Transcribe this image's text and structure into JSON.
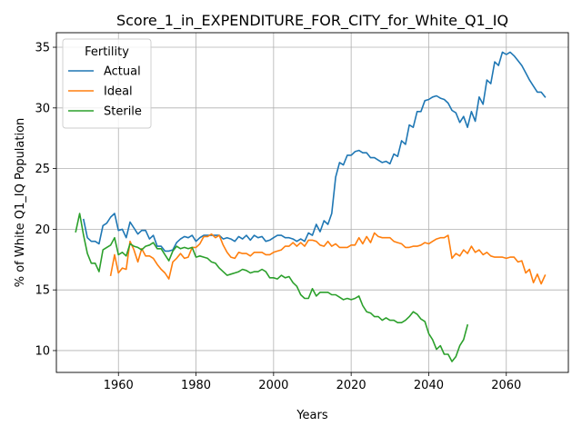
{
  "chart_data": {
    "type": "line",
    "title": "Score_1_in_EXPENDITURE_FOR_CITY_for_White_Q1_IQ",
    "xlabel": "Years",
    "ylabel": "% of White Q1_IQ Population",
    "xlim": [
      1944,
      2076
    ],
    "ylim": [
      8.2,
      36.2
    ],
    "xticks": [
      1960,
      1980,
      2000,
      2020,
      2040,
      2060
    ],
    "yticks": [
      10,
      15,
      20,
      25,
      30,
      35
    ],
    "grid": true,
    "legend": {
      "title": "Fertility",
      "position": "top-left"
    },
    "series": [
      {
        "name": "Actual",
        "color": "#1f77b4",
        "x": [
          1951,
          1952,
          1953,
          1954,
          1955,
          1956,
          1957,
          1958,
          1959,
          1960,
          1961,
          1962,
          1963,
          1964,
          1965,
          1966,
          1967,
          1968,
          1969,
          1970,
          1971,
          1972,
          1973,
          1974,
          1975,
          1976,
          1977,
          1978,
          1979,
          1980,
          1981,
          1982,
          1983,
          1984,
          1985,
          1986,
          1987,
          1988,
          1989,
          1990,
          1991,
          1992,
          1993,
          1994,
          1995,
          1996,
          1997,
          1998,
          1999,
          2000,
          2001,
          2002,
          2003,
          2004,
          2005,
          2006,
          2007,
          2008,
          2009,
          2010,
          2011,
          2012,
          2013,
          2014,
          2015,
          2016,
          2017,
          2018,
          2019,
          2020,
          2021,
          2022,
          2023,
          2024,
          2025,
          2026,
          2027,
          2028,
          2029,
          2030,
          2031,
          2032,
          2033,
          2034,
          2035,
          2036,
          2037,
          2038,
          2039,
          2040,
          2041,
          2042,
          2043,
          2044,
          2045,
          2046,
          2047,
          2048,
          2049,
          2050,
          2051,
          2052,
          2053,
          2054,
          2055,
          2056,
          2057,
          2058,
          2059,
          2060,
          2061,
          2062,
          2063,
          2064,
          2065,
          2066,
          2067,
          2068,
          2069,
          2070
        ],
        "values": [
          20.8,
          19.3,
          19.0,
          19.0,
          18.8,
          20.3,
          20.5,
          21.0,
          21.3,
          19.9,
          20.0,
          19.3,
          20.6,
          20.1,
          19.6,
          19.9,
          19.9,
          19.2,
          19.5,
          18.6,
          18.6,
          18.2,
          18.2,
          18.3,
          18.9,
          19.2,
          19.4,
          19.3,
          19.5,
          19.0,
          19.3,
          19.5,
          19.5,
          19.5,
          19.5,
          19.5,
          19.2,
          19.3,
          19.2,
          19.0,
          19.4,
          19.2,
          19.5,
          19.1,
          19.5,
          19.3,
          19.4,
          19.0,
          19.1,
          19.3,
          19.5,
          19.5,
          19.3,
          19.3,
          19.2,
          19.0,
          19.2,
          19.0,
          19.7,
          19.5,
          20.4,
          19.8,
          20.7,
          20.4,
          21.3,
          24.3,
          25.5,
          25.3,
          26.1,
          26.1,
          26.4,
          26.5,
          26.3,
          26.3,
          25.9,
          25.9,
          25.7,
          25.5,
          25.6,
          25.4,
          26.2,
          26.0,
          27.3,
          27.0,
          28.6,
          28.4,
          29.7,
          29.7,
          30.6,
          30.7,
          30.9,
          31.0,
          30.8,
          30.7,
          30.4,
          29.8,
          29.6,
          28.8,
          29.3,
          28.4,
          29.7,
          28.9,
          30.9,
          30.3,
          32.3,
          32.0,
          33.8,
          33.5,
          34.6,
          34.4,
          34.6,
          34.3,
          33.9,
          33.5,
          32.9,
          32.3,
          31.8,
          31.3,
          31.3,
          30.9
        ]
      },
      {
        "name": "Ideal",
        "color": "#ff7f0e",
        "x": [
          1958,
          1959,
          1960,
          1961,
          1962,
          1963,
          1964,
          1965,
          1966,
          1967,
          1968,
          1969,
          1970,
          1971,
          1972,
          1973,
          1974,
          1975,
          1976,
          1977,
          1978,
          1979,
          1980,
          1981,
          1982,
          1983,
          1984,
          1985,
          1986,
          1987,
          1988,
          1989,
          1990,
          1991,
          1992,
          1993,
          1994,
          1995,
          1996,
          1997,
          1998,
          1999,
          2000,
          2001,
          2002,
          2003,
          2004,
          2005,
          2006,
          2007,
          2008,
          2009,
          2010,
          2011,
          2012,
          2013,
          2014,
          2015,
          2016,
          2017,
          2018,
          2019,
          2020,
          2021,
          2022,
          2023,
          2024,
          2025,
          2026,
          2027,
          2028,
          2029,
          2030,
          2031,
          2032,
          2033,
          2034,
          2035,
          2036,
          2037,
          2038,
          2039,
          2040,
          2041,
          2042,
          2043,
          2044,
          2045,
          2046,
          2047,
          2048,
          2049,
          2050,
          2051,
          2052,
          2053,
          2054,
          2055,
          2056,
          2057,
          2058,
          2059,
          2060,
          2061,
          2062,
          2063,
          2064,
          2065,
          2066,
          2067,
          2068,
          2069,
          2070
        ],
        "values": [
          16.2,
          17.9,
          16.4,
          16.8,
          16.7,
          19.0,
          18.3,
          17.3,
          18.4,
          17.8,
          17.8,
          17.6,
          17.1,
          16.7,
          16.4,
          15.9,
          17.3,
          17.6,
          18.0,
          17.6,
          17.7,
          18.5,
          18.5,
          18.8,
          19.4,
          19.4,
          19.6,
          19.3,
          19.5,
          18.7,
          18.1,
          17.7,
          17.6,
          18.1,
          18.0,
          18.0,
          17.8,
          18.1,
          18.1,
          18.1,
          17.9,
          17.9,
          18.1,
          18.2,
          18.3,
          18.6,
          18.6,
          18.9,
          18.6,
          18.9,
          18.6,
          19.1,
          19.1,
          19.0,
          18.7,
          18.6,
          19.0,
          18.6,
          18.8,
          18.5,
          18.5,
          18.5,
          18.7,
          18.7,
          19.3,
          18.8,
          19.4,
          18.9,
          19.7,
          19.4,
          19.3,
          19.3,
          19.3,
          19.0,
          18.9,
          18.8,
          18.5,
          18.5,
          18.6,
          18.6,
          18.7,
          18.9,
          18.8,
          19.0,
          19.2,
          19.3,
          19.3,
          19.5,
          17.6,
          18.0,
          17.8,
          18.3,
          18.0,
          18.6,
          18.1,
          18.3,
          17.9,
          18.1,
          17.8,
          17.7,
          17.7,
          17.7,
          17.6,
          17.7,
          17.7,
          17.3,
          17.4,
          16.4,
          16.7,
          15.6,
          16.3,
          15.5,
          16.2
        ]
      },
      {
        "name": "Sterile",
        "color": "#2ca02c",
        "x": [
          1949,
          1950,
          1951,
          1952,
          1953,
          1954,
          1955,
          1956,
          1957,
          1958,
          1959,
          1960,
          1961,
          1962,
          1963,
          1964,
          1965,
          1966,
          1967,
          1968,
          1969,
          1970,
          1971,
          1972,
          1973,
          1974,
          1975,
          1976,
          1977,
          1978,
          1979,
          1980,
          1981,
          1982,
          1983,
          1984,
          1985,
          1986,
          1987,
          1988,
          1989,
          1990,
          1991,
          1992,
          1993,
          1994,
          1995,
          1996,
          1997,
          1998,
          1999,
          2000,
          2001,
          2002,
          2003,
          2004,
          2005,
          2006,
          2007,
          2008,
          2009,
          2010,
          2011,
          2012,
          2013,
          2014,
          2015,
          2016,
          2017,
          2018,
          2019,
          2020,
          2021,
          2022,
          2023,
          2024,
          2025,
          2026,
          2027,
          2028,
          2029,
          2030,
          2031,
          2032,
          2033,
          2034,
          2035,
          2036,
          2037,
          2038,
          2039,
          2040,
          2041,
          2042,
          2043,
          2044,
          2045,
          2046,
          2047,
          2048,
          2049,
          2050
        ],
        "values": [
          19.8,
          21.3,
          19.5,
          18.0,
          17.2,
          17.2,
          16.5,
          18.3,
          18.5,
          18.7,
          19.3,
          17.9,
          18.1,
          17.8,
          18.8,
          18.6,
          18.5,
          18.3,
          18.6,
          18.7,
          18.9,
          18.4,
          18.4,
          17.9,
          17.4,
          18.2,
          18.6,
          18.4,
          18.5,
          18.4,
          18.5,
          17.7,
          17.8,
          17.7,
          17.6,
          17.3,
          17.2,
          16.8,
          16.5,
          16.2,
          16.3,
          16.4,
          16.5,
          16.7,
          16.6,
          16.4,
          16.5,
          16.5,
          16.7,
          16.5,
          16.0,
          16.0,
          15.9,
          16.2,
          16.0,
          16.1,
          15.6,
          15.3,
          14.6,
          14.3,
          14.3,
          15.1,
          14.5,
          14.8,
          14.8,
          14.8,
          14.6,
          14.6,
          14.4,
          14.2,
          14.3,
          14.2,
          14.3,
          14.5,
          13.7,
          13.2,
          13.1,
          12.8,
          12.8,
          12.5,
          12.7,
          12.5,
          12.5,
          12.3,
          12.3,
          12.5,
          12.8,
          13.2,
          13.0,
          12.6,
          12.4,
          11.4,
          10.9,
          10.1,
          10.4,
          9.7,
          9.7,
          9.1,
          9.5,
          10.4,
          10.9,
          12.1
        ]
      }
    ]
  }
}
